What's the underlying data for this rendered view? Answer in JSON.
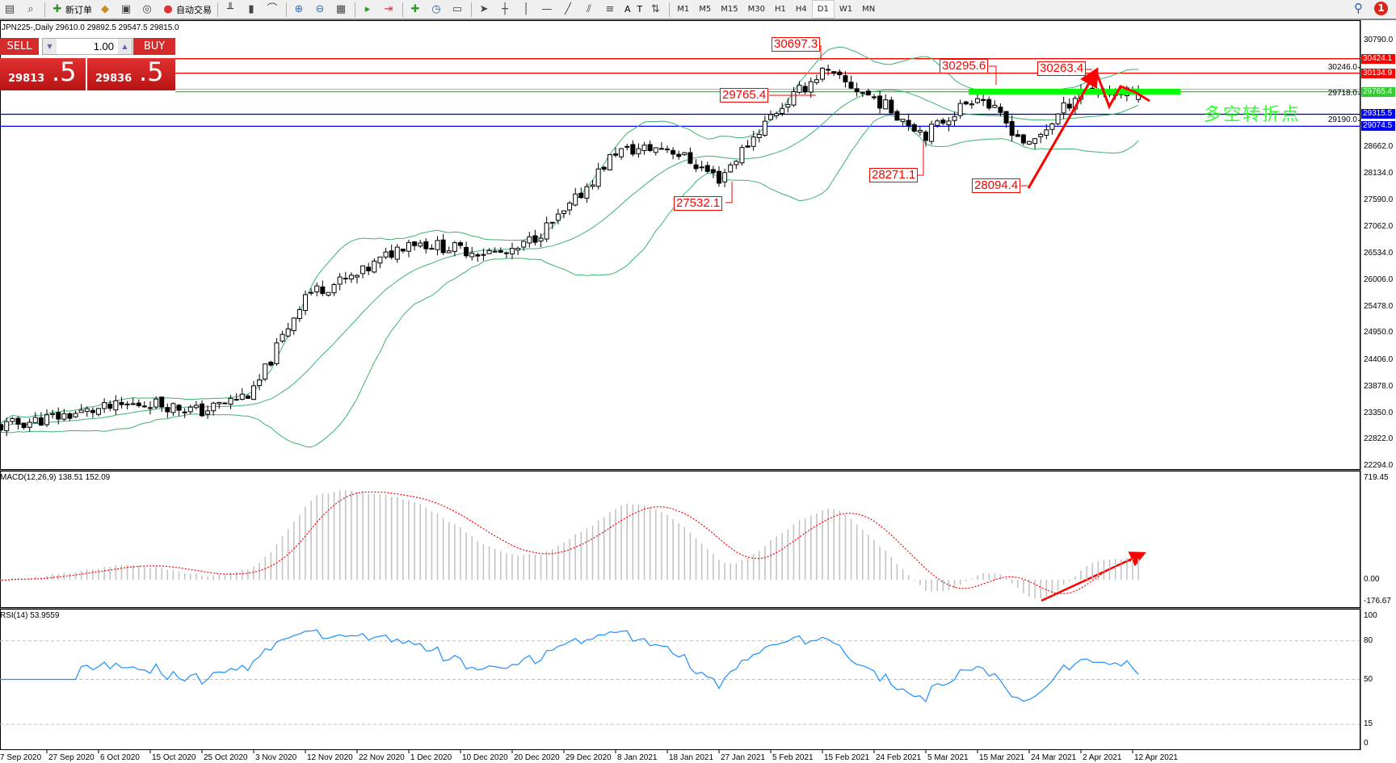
{
  "toolbar": {
    "items": [
      {
        "icon": "new-chart-icon",
        "label": ""
      },
      {
        "icon": "zoom-chart-icon",
        "label": ""
      },
      {
        "icon": "new-order-icon",
        "label": "新订单"
      },
      {
        "icon": "metaeditor-icon",
        "label": ""
      },
      {
        "icon": "terminal-icon",
        "label": ""
      },
      {
        "icon": "signals-icon",
        "label": ""
      },
      {
        "icon": "auto-trading-icon",
        "label": "自动交易"
      },
      {
        "icon": "bar-chart-icon",
        "label": ""
      },
      {
        "icon": "candlestick-icon",
        "label": ""
      },
      {
        "icon": "line-chart-icon",
        "label": ""
      },
      {
        "icon": "zoom-in-icon",
        "label": ""
      },
      {
        "icon": "zoom-out-icon",
        "label": ""
      },
      {
        "icon": "tile-windows-icon",
        "label": ""
      },
      {
        "icon": "autoscroll-icon",
        "label": ""
      },
      {
        "icon": "chart-shift-icon",
        "label": ""
      },
      {
        "icon": "indicators-icon",
        "label": ""
      },
      {
        "icon": "periods-icon",
        "label": ""
      },
      {
        "icon": "templates-icon",
        "label": ""
      },
      {
        "icon": "cursor-icon",
        "label": ""
      },
      {
        "icon": "crosshair-icon",
        "label": ""
      },
      {
        "icon": "vertical-line-icon",
        "label": ""
      },
      {
        "icon": "horizontal-line-icon",
        "label": ""
      },
      {
        "icon": "trendline-icon",
        "label": ""
      },
      {
        "icon": "equidistant-channel-icon",
        "label": ""
      },
      {
        "icon": "fibonacci-icon",
        "label": ""
      },
      {
        "icon": "text-icon",
        "label": "A"
      },
      {
        "icon": "text-label-icon",
        "label": "T"
      },
      {
        "icon": "arrows-icon",
        "label": ""
      }
    ],
    "timeframes": [
      "M1",
      "M5",
      "M15",
      "M30",
      "H1",
      "H4",
      "D1",
      "W1",
      "MN"
    ],
    "active_timeframe": "D1",
    "notification_count": "1"
  },
  "chart_header": "JPN225-,Daily  29610.0 29892.5 29547.5 29815.0",
  "trade_panel": {
    "sell_label": "SELL",
    "buy_label": "BUY",
    "lots": "1.00",
    "sell_price_main": "29813",
    "sell_price_big": ".5",
    "buy_price_main": "29836",
    "buy_price_big": ".5"
  },
  "annotations": {
    "labels": [
      "30697.3",
      "30295.6",
      "30263.4",
      "29765.4",
      "28271.1",
      "28094.4",
      "27532.1"
    ],
    "chinese_note": "多空转折点",
    "note_color": "#33ff33",
    "arrow_color": "#ff0000"
  },
  "levels": [
    {
      "value": "30424.1",
      "color": "#ff0000"
    },
    {
      "value": "30134.9",
      "color": "#ff0000"
    },
    {
      "value": "29765.4",
      "color": "#32cd32"
    },
    {
      "value": "29315.5",
      "color": "#0000ff"
    },
    {
      "value": "29074.5",
      "color": "#0000ff"
    }
  ],
  "chart_data": {
    "type": "candlestick",
    "symbol": "JPN225-",
    "timeframe": "Daily",
    "price_ticks": [
      "30790.0",
      "30246.0",
      "29718.0",
      "29190.0",
      "28662.0",
      "28134.0",
      "27590.0",
      "27062.0",
      "26534.0",
      "26006.0",
      "25478.0",
      "24950.0",
      "24406.0",
      "23878.0",
      "23350.0",
      "22822.0",
      "22294.0"
    ],
    "ylim": [
      22294.0,
      30790.0
    ],
    "date_labels": [
      "7 Sep 2020",
      "27 Sep 2020",
      "6 Oct 2020",
      "15 Oct 2020",
      "25 Oct 2020",
      "3 Nov 2020",
      "12 Nov 2020",
      "22 Nov 2020",
      "1 Dec 2020",
      "10 Dec 2020",
      "20 Dec 2020",
      "29 Dec 2020",
      "8 Jan 2021",
      "18 Jan 2021",
      "27 Jan 2021",
      "5 Feb 2021",
      "15 Feb 2021",
      "24 Feb 2021",
      "5 Mar 2021",
      "15 Mar 2021",
      "24 Mar 2021",
      "2 Apr 2021",
      "12 Apr 2021"
    ],
    "approx_close_at_labels": [
      23060,
      23240,
      23420,
      23560,
      23380,
      23770,
      25730,
      26080,
      26790,
      26610,
      26520,
      27320,
      28570,
      28660,
      28030,
      29280,
      30170,
      29635,
      28920,
      29720,
      28660,
      29810,
      29720
    ],
    "last_close": 29815.0,
    "last_ohlc": {
      "open": 29610.0,
      "high": 29892.5,
      "low": 29547.5,
      "close": 29815.0
    },
    "bollinger_color": "#3cb371",
    "macd": {
      "label": "MACD(12,26,9) 138.51 152.09",
      "ticks": [
        "719.45",
        "0.00",
        "-176.67"
      ],
      "ylim": [
        -176.67,
        719.45
      ],
      "histogram_color": "#c0c0c0",
      "signal_color": "#ff0000"
    },
    "rsi": {
      "label": "RSI(14) 53.9559",
      "ticks": [
        "100",
        "80",
        "50",
        "15",
        "0"
      ],
      "ylim": [
        0,
        100
      ],
      "levels": [
        80,
        50,
        15
      ],
      "color": "#1e90ff"
    }
  }
}
